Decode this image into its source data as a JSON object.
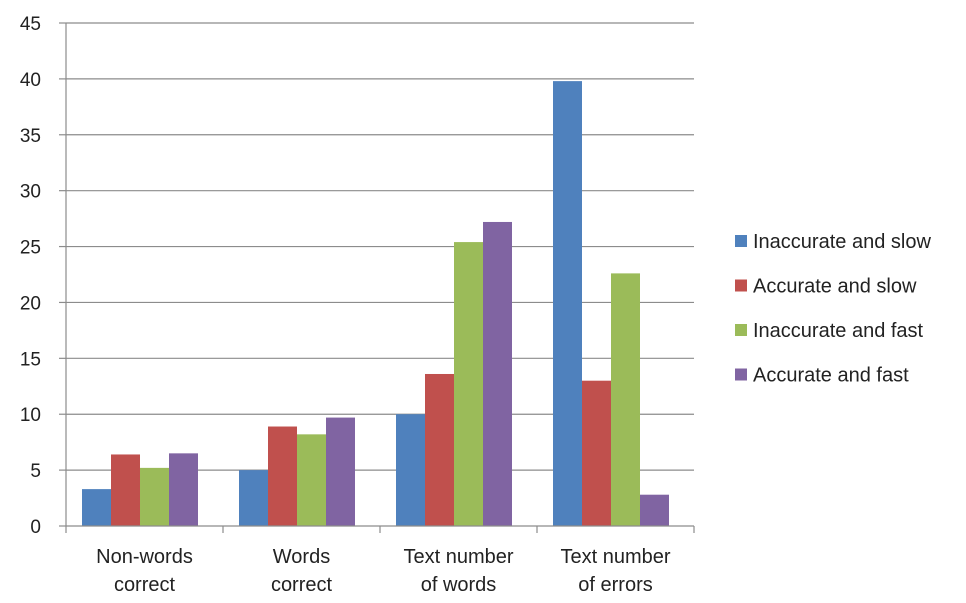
{
  "chart_data": {
    "type": "bar",
    "title": "",
    "xlabel": "",
    "ylabel": "",
    "ylim": [
      0,
      45
    ],
    "yticks": [
      "0",
      "5",
      "10",
      "15",
      "20",
      "25",
      "30",
      "35",
      "40",
      "45"
    ],
    "grid": true,
    "legend_position": "right",
    "categories": [
      [
        "Non-words",
        "correct"
      ],
      [
        "Words",
        "correct"
      ],
      [
        "Text number",
        "of words"
      ],
      [
        "Text number",
        "of errors"
      ]
    ],
    "series": [
      {
        "name": "Inaccurate and slow",
        "color": "#4f81bd",
        "values": [
          3.3,
          5.0,
          10.0,
          39.8
        ]
      },
      {
        "name": "Accurate and slow",
        "color": "#c0504d",
        "values": [
          6.4,
          8.9,
          13.6,
          13.0
        ]
      },
      {
        "name": "Inaccurate and fast",
        "color": "#9bbb59",
        "values": [
          5.2,
          8.2,
          25.4,
          22.6
        ]
      },
      {
        "name": "Accurate and fast",
        "color": "#8064a2",
        "values": [
          6.5,
          9.7,
          27.2,
          2.8
        ]
      }
    ]
  }
}
